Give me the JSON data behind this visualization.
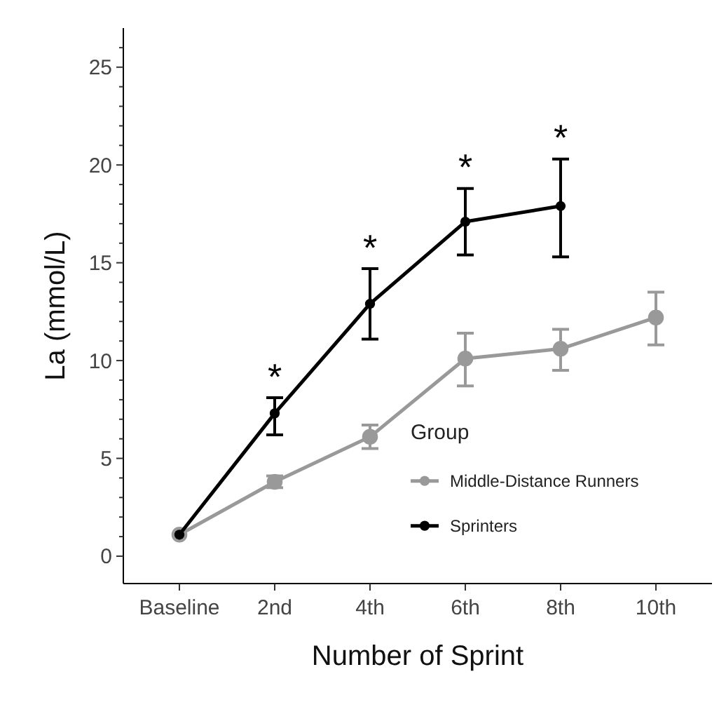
{
  "chart_data": {
    "type": "line",
    "xlabel": "Number of Sprint",
    "ylabel": "La (mmol/L)",
    "legend_title": "Group",
    "categories": [
      "Baseline",
      "2nd",
      "4th",
      "6th",
      "8th",
      "10th"
    ],
    "series": [
      {
        "name": "Middle-Distance Runners",
        "color": "#999999",
        "values": [
          1.1,
          3.8,
          6.1,
          10.1,
          10.6,
          12.2
        ],
        "errors": [
          null,
          [
            3.5,
            4.1
          ],
          [
            5.5,
            6.7
          ],
          [
            8.7,
            11.4
          ],
          [
            9.5,
            11.6
          ],
          [
            10.8,
            13.5
          ]
        ]
      },
      {
        "name": "Sprinters",
        "color": "#000000",
        "values": [
          1.1,
          7.3,
          12.9,
          17.1,
          17.9,
          null
        ],
        "errors": [
          null,
          [
            6.2,
            8.1
          ],
          [
            11.1,
            14.7
          ],
          [
            15.4,
            18.8
          ],
          [
            15.3,
            20.3
          ],
          null
        ]
      }
    ],
    "ylim": [
      -1.4,
      27
    ],
    "yticks": [
      0,
      {
        "value": 1,
        "label": null
      },
      {
        "value": 2,
        "label": null
      },
      {
        "value": 3,
        "label": null
      },
      {
        "value": 4,
        "label": null
      },
      5,
      {
        "value": 6,
        "label": null
      },
      {
        "value": 7,
        "label": null
      },
      {
        "value": 8,
        "label": null
      },
      {
        "value": 9,
        "label": null
      },
      10,
      {
        "value": 11,
        "label": null
      },
      {
        "value": 12,
        "label": null
      },
      {
        "value": 13,
        "label": null
      },
      {
        "value": 14,
        "label": null
      },
      15,
      {
        "value": 16,
        "label": null
      },
      {
        "value": 17,
        "label": null
      },
      {
        "value": 18,
        "label": null
      },
      {
        "value": 19,
        "label": null
      },
      20,
      {
        "value": 21,
        "label": null
      },
      {
        "value": 22,
        "label": null
      },
      {
        "value": 23,
        "label": null
      },
      {
        "value": 24,
        "label": null
      },
      25,
      {
        "value": 26,
        "label": null
      }
    ],
    "annotations": [
      "*",
      "*",
      "*",
      "*"
    ],
    "marker": "circle",
    "line_style": "solid",
    "legend": "bottom right",
    "grid": false
  }
}
